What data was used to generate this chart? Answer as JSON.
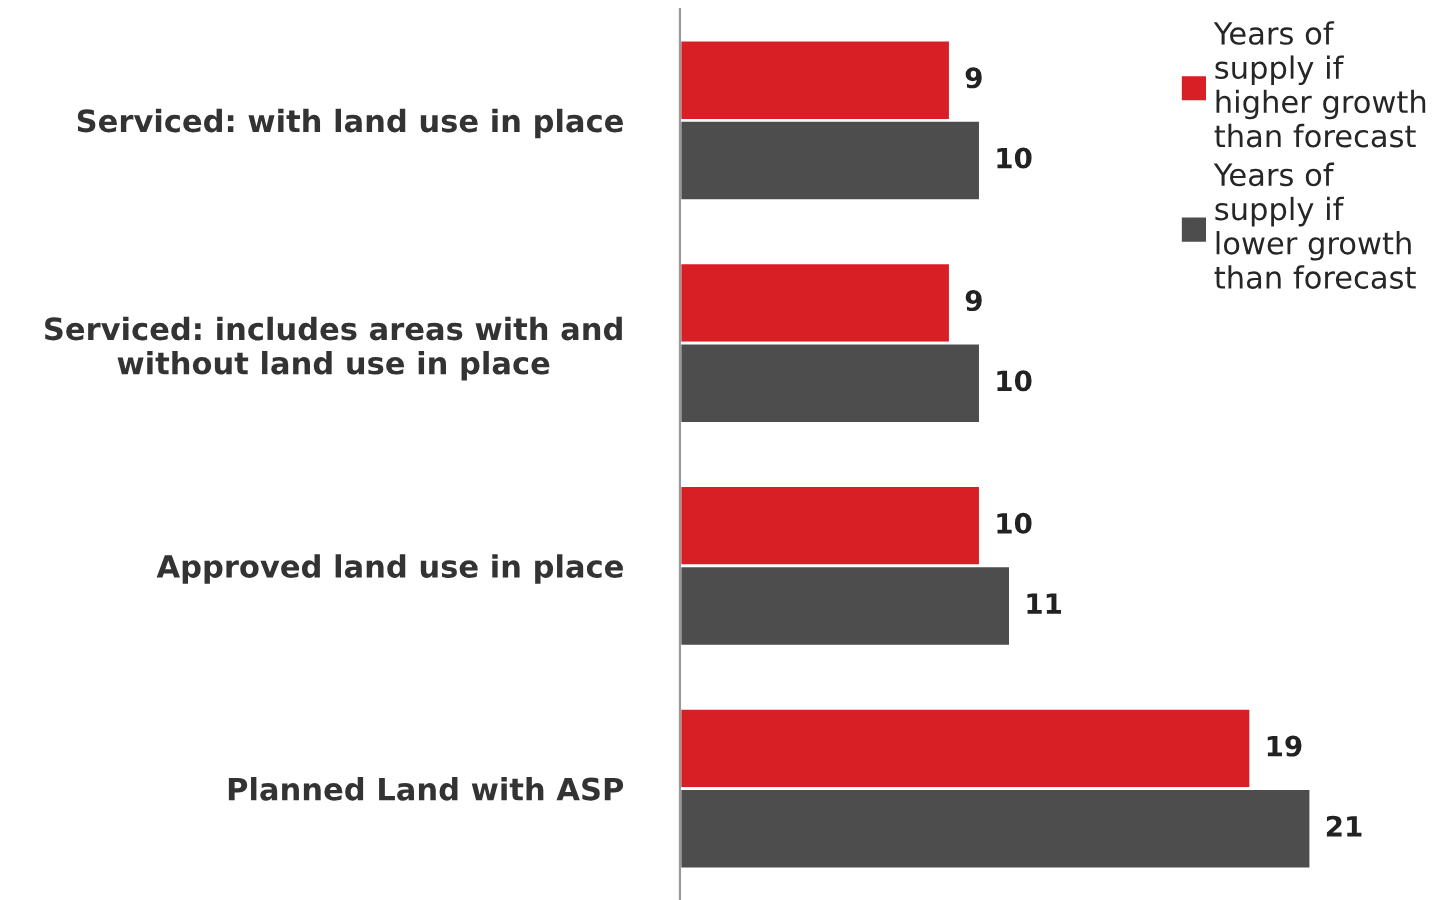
{
  "chart_data": {
    "type": "bar",
    "orientation": "horizontal",
    "categories": [
      "Serviced: with land use in place",
      "Serviced: includes areas with and without land use in place",
      "Approved land use in place",
      "Planned Land with ASP"
    ],
    "series": [
      {
        "name": "Years of supply if higher growth than forecast",
        "color": "#d91f26",
        "values": [
          9,
          9,
          10,
          19
        ]
      },
      {
        "name": "Years of supply if lower growth than forecast",
        "color": "#4d4d4d",
        "values": [
          10,
          10,
          11,
          21
        ]
      }
    ],
    "data_labels": true,
    "legend": "top right",
    "tick_labels": "y",
    "grid": false
  }
}
